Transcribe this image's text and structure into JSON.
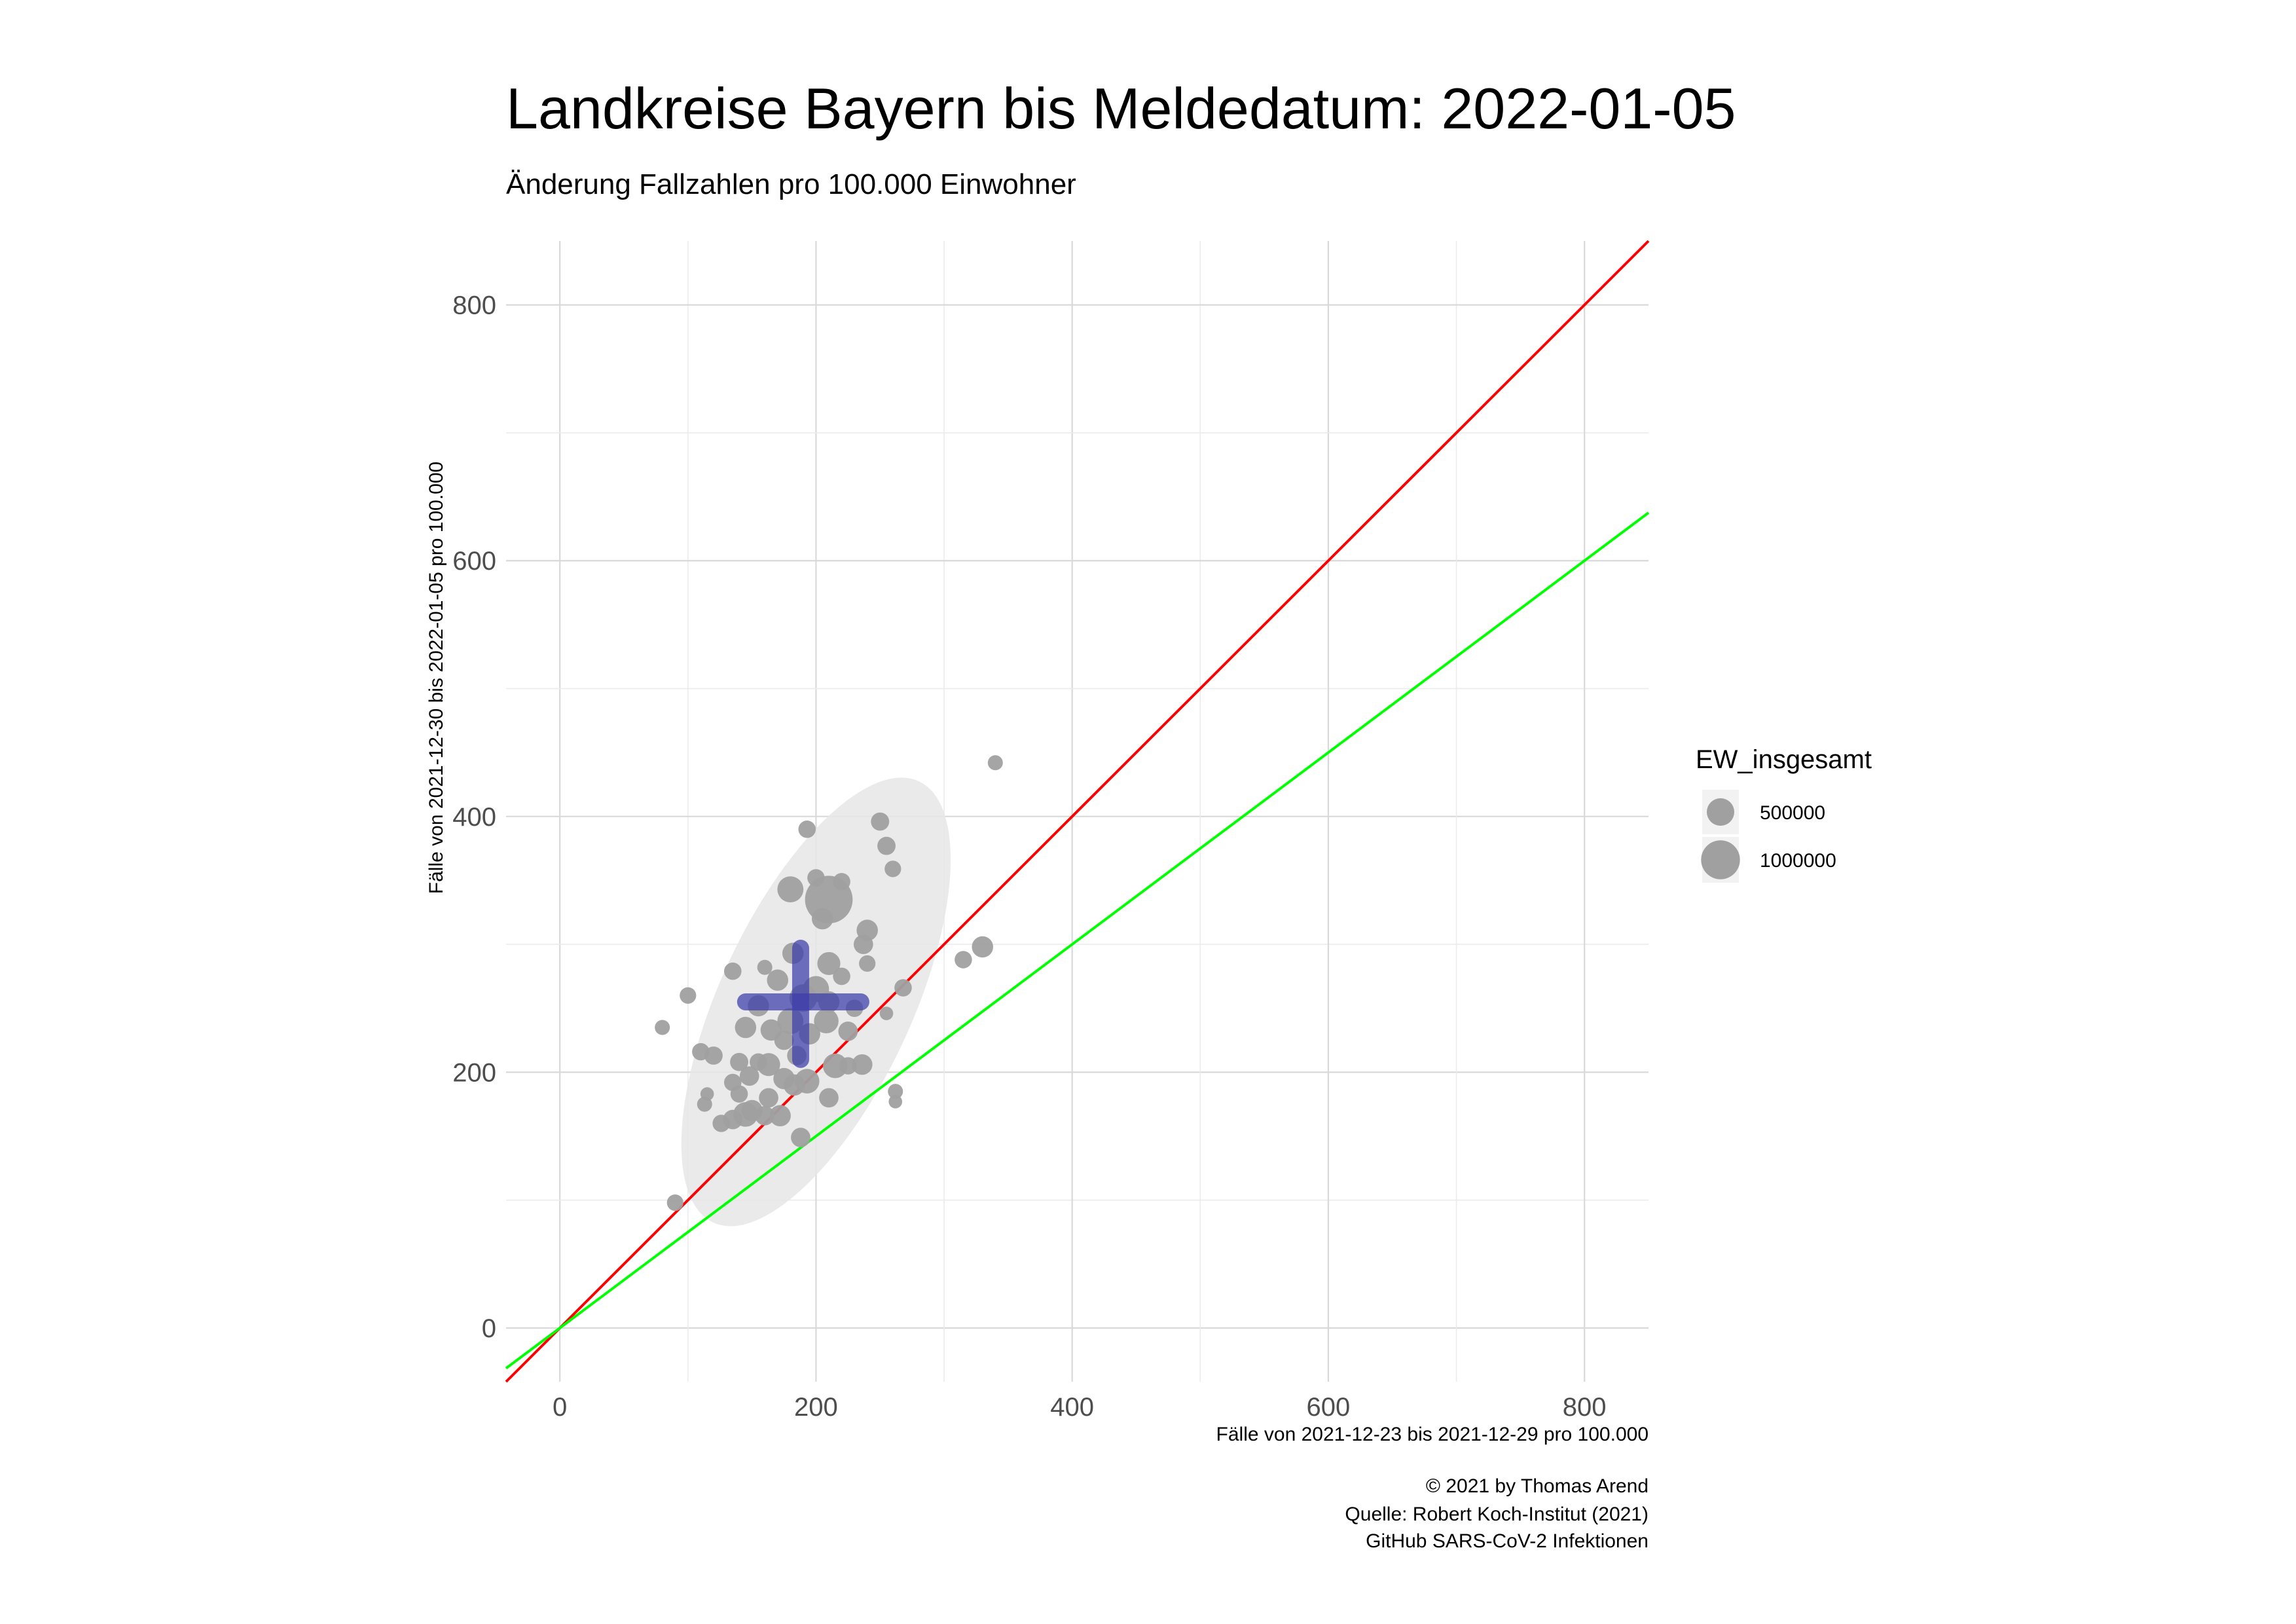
{
  "chart_data": {
    "type": "scatter",
    "title": "Landkreise Bayern bis Meldedatum: 2022-01-05",
    "subtitle": "Änderung Fallzahlen pro 100.000 Einwohner",
    "xlabel": "Fälle von 2021-12-23 bis 2021-12-29 pro 100.000",
    "ylabel": "Fälle von 2021-12-30 bis 2022-01-05 pro 100.000",
    "xlim": [
      -42,
      850
    ],
    "ylim": [
      -42,
      850
    ],
    "x_ticks": [
      0,
      200,
      400,
      600,
      800
    ],
    "y_ticks": [
      0,
      200,
      400,
      600,
      800
    ],
    "grid": true,
    "caption": [
      "© 2021 by Thomas Arend",
      "Quelle: Robert Koch-Institut (2021)",
      "GitHub SARS-CoV-2 Infektionen"
    ],
    "legend": {
      "title": "EW_insgesamt",
      "placement": "right",
      "entries": [
        {
          "label": "500000",
          "size": 500000
        },
        {
          "label": "1000000",
          "size": 1000000
        }
      ]
    },
    "reference_lines": [
      {
        "slope": 1.0,
        "intercept": 0,
        "color": "#ff0000"
      },
      {
        "slope": 0.75,
        "intercept": 0,
        "color": "#00ff00"
      }
    ],
    "ellipse": {
      "cx": 200,
      "cy": 255,
      "rx": 190,
      "ry": 75,
      "angle_deg": 65,
      "color": "#e6e6e6"
    },
    "mean_cross": {
      "x": 188,
      "y": 255,
      "x_range": [
        145,
        235
      ],
      "y_range": [
        210,
        297
      ],
      "color": "#3b3bab"
    },
    "point_color": "#a0a0a0",
    "points": [
      {
        "x": 340,
        "y": 442,
        "size": 150000
      },
      {
        "x": 250,
        "y": 396,
        "size": 220000
      },
      {
        "x": 193,
        "y": 390,
        "size": 200000
      },
      {
        "x": 255,
        "y": 377,
        "size": 220000
      },
      {
        "x": 260,
        "y": 359,
        "size": 180000
      },
      {
        "x": 200,
        "y": 352,
        "size": 200000
      },
      {
        "x": 220,
        "y": 349,
        "size": 200000
      },
      {
        "x": 180,
        "y": 343,
        "size": 450000
      },
      {
        "x": 210,
        "y": 335,
        "size": 1500000
      },
      {
        "x": 205,
        "y": 320,
        "size": 300000
      },
      {
        "x": 240,
        "y": 311,
        "size": 300000
      },
      {
        "x": 330,
        "y": 298,
        "size": 300000
      },
      {
        "x": 237,
        "y": 300,
        "size": 250000
      },
      {
        "x": 315,
        "y": 288,
        "size": 200000
      },
      {
        "x": 182,
        "y": 293,
        "size": 300000
      },
      {
        "x": 210,
        "y": 285,
        "size": 350000
      },
      {
        "x": 240,
        "y": 285,
        "size": 180000
      },
      {
        "x": 160,
        "y": 282,
        "size": 150000
      },
      {
        "x": 135,
        "y": 279,
        "size": 200000
      },
      {
        "x": 220,
        "y": 275,
        "size": 200000
      },
      {
        "x": 170,
        "y": 272,
        "size": 300000
      },
      {
        "x": 268,
        "y": 266,
        "size": 200000
      },
      {
        "x": 200,
        "y": 265,
        "size": 450000
      },
      {
        "x": 100,
        "y": 260,
        "size": 180000
      },
      {
        "x": 190,
        "y": 258,
        "size": 500000
      },
      {
        "x": 210,
        "y": 255,
        "size": 300000
      },
      {
        "x": 155,
        "y": 252,
        "size": 300000
      },
      {
        "x": 230,
        "y": 250,
        "size": 200000
      },
      {
        "x": 255,
        "y": 246,
        "size": 120000
      },
      {
        "x": 180,
        "y": 240,
        "size": 450000
      },
      {
        "x": 208,
        "y": 240,
        "size": 400000
      },
      {
        "x": 80,
        "y": 235,
        "size": 150000
      },
      {
        "x": 145,
        "y": 235,
        "size": 300000
      },
      {
        "x": 165,
        "y": 233,
        "size": 300000
      },
      {
        "x": 225,
        "y": 232,
        "size": 250000
      },
      {
        "x": 195,
        "y": 230,
        "size": 300000
      },
      {
        "x": 175,
        "y": 225,
        "size": 250000
      },
      {
        "x": 110,
        "y": 216,
        "size": 200000
      },
      {
        "x": 120,
        "y": 213,
        "size": 220000
      },
      {
        "x": 185,
        "y": 213,
        "size": 250000
      },
      {
        "x": 140,
        "y": 208,
        "size": 220000
      },
      {
        "x": 155,
        "y": 208,
        "size": 200000
      },
      {
        "x": 163,
        "y": 206,
        "size": 350000
      },
      {
        "x": 215,
        "y": 205,
        "size": 400000
      },
      {
        "x": 225,
        "y": 205,
        "size": 200000
      },
      {
        "x": 236,
        "y": 206,
        "size": 280000
      },
      {
        "x": 148,
        "y": 197,
        "size": 250000
      },
      {
        "x": 175,
        "y": 195,
        "size": 300000
      },
      {
        "x": 193,
        "y": 193,
        "size": 400000
      },
      {
        "x": 135,
        "y": 192,
        "size": 200000
      },
      {
        "x": 183,
        "y": 190,
        "size": 300000
      },
      {
        "x": 115,
        "y": 183,
        "size": 120000
      },
      {
        "x": 140,
        "y": 183,
        "size": 200000
      },
      {
        "x": 262,
        "y": 185,
        "size": 150000
      },
      {
        "x": 163,
        "y": 180,
        "size": 250000
      },
      {
        "x": 210,
        "y": 180,
        "size": 250000
      },
      {
        "x": 113,
        "y": 175,
        "size": 150000
      },
      {
        "x": 262,
        "y": 177,
        "size": 120000
      },
      {
        "x": 150,
        "y": 170,
        "size": 300000
      },
      {
        "x": 145,
        "y": 167,
        "size": 400000
      },
      {
        "x": 160,
        "y": 166,
        "size": 250000
      },
      {
        "x": 172,
        "y": 166,
        "size": 300000
      },
      {
        "x": 135,
        "y": 163,
        "size": 250000
      },
      {
        "x": 126,
        "y": 160,
        "size": 200000
      },
      {
        "x": 188,
        "y": 149,
        "size": 250000
      },
      {
        "x": 90,
        "y": 98,
        "size": 180000
      }
    ]
  }
}
